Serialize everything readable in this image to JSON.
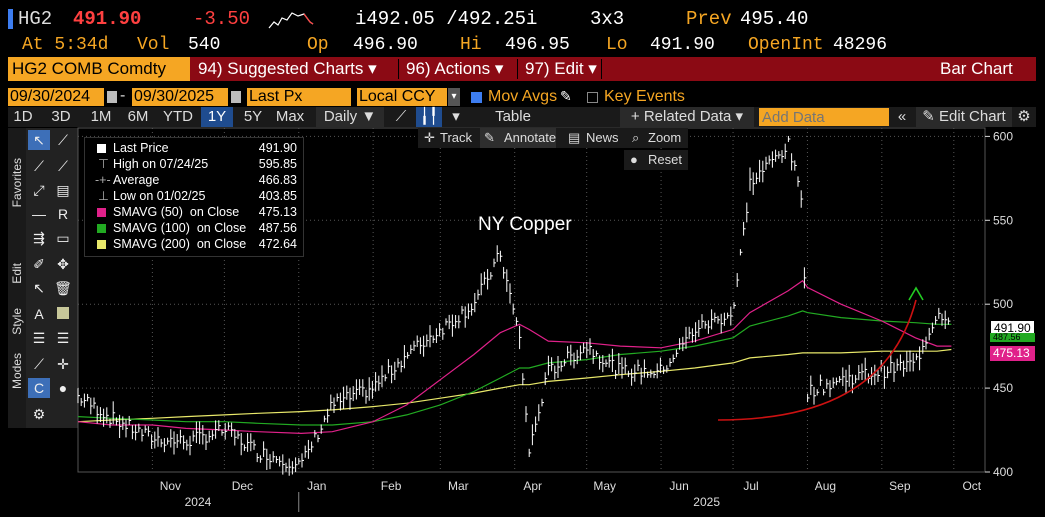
{
  "quote": {
    "ticker": "HG2",
    "last": "491.90",
    "change": "-3.50",
    "bid_ask": "i492.05 /492.25i",
    "size": "3x3",
    "prev_label": "Prev",
    "prev": "495.40",
    "time_label": "At 5:34d",
    "vol_label": "Vol",
    "vol": "540",
    "open_label": "Op",
    "open": "496.90",
    "high_label": "Hi",
    "high": "496.95",
    "low_label": "Lo",
    "low": "491.90",
    "oi_label": "OpenInt",
    "oi": "48296"
  },
  "titlebar": {
    "security": "HG2 COMB Comdty",
    "suggested": "94) Suggested Charts ▾",
    "actions": "96) Actions ▾",
    "edit": "97) Edit ▾",
    "chart_type": "Bar Chart"
  },
  "controls": {
    "start_date": "09/30/2024",
    "end_date": "09/30/2025",
    "field": "Last Px",
    "currency": "Local CCY",
    "mov_avgs": "Mov Avgs",
    "key_events": "Key Events"
  },
  "periods": [
    "1D",
    "3D",
    "1M",
    "6M",
    "YTD",
    "1Y",
    "5Y",
    "Max"
  ],
  "selected_period": "1Y",
  "toolbar": {
    "freq": "Daily ▼",
    "table": "Table",
    "related": "+ Related Data ▾",
    "add_data_placeholder": "Add Data",
    "edit_chart": "Edit Chart"
  },
  "overlay": {
    "track": "Track",
    "annotate": "Annotate",
    "news": "News",
    "zoom": "Zoom",
    "reset": "Reset"
  },
  "side_tabs": {
    "favorites": "Favorites",
    "edit": "Edit",
    "style": "Style",
    "modes": "Modes"
  },
  "legend": {
    "last_price": {
      "label": "Last Price",
      "value": "491.90"
    },
    "high": {
      "label": "High on 07/24/25",
      "value": "595.85"
    },
    "average": {
      "label": "Average",
      "value": "466.83"
    },
    "low": {
      "label": "Low on 01/02/25",
      "value": "403.85"
    },
    "sma50": {
      "label": "SMAVG (50)  on Close",
      "value": "475.13"
    },
    "sma100": {
      "label": "SMAVG (100)  on Close",
      "value": "487.56"
    },
    "sma200": {
      "label": "SMAVG (200)  on Close",
      "value": "472.64"
    }
  },
  "colors": {
    "sma50": "#e0218a",
    "sma100": "#22aa22",
    "sma200": "#e8e86a",
    "price": "#ffffff",
    "arrow": "#cc1111",
    "arrow_head": "#22cc22"
  },
  "chart_data": {
    "type": "line",
    "title": "NY Copper",
    "ylim": [
      400,
      605
    ],
    "yticks": [
      400,
      450,
      500,
      550,
      600
    ],
    "x_tick_labels": [
      "Nov",
      "Dec",
      "Jan",
      "Feb",
      "Mar",
      "Apr",
      "May",
      "Jun",
      "Jul",
      "Aug",
      "Sep",
      "Oct"
    ],
    "year_labels": [
      "2024",
      "2025"
    ],
    "x": [
      "2024-10-01",
      "2024-10-15",
      "2024-11-01",
      "2024-11-15",
      "2024-12-01",
      "2024-12-15",
      "2025-01-02",
      "2025-01-15",
      "2025-02-01",
      "2025-02-15",
      "2025-03-01",
      "2025-03-15",
      "2025-03-26",
      "2025-04-03",
      "2025-04-07",
      "2025-04-15",
      "2025-05-01",
      "2025-05-15",
      "2025-06-01",
      "2025-06-15",
      "2025-07-01",
      "2025-07-08",
      "2025-07-24",
      "2025-07-30",
      "2025-08-01",
      "2025-08-15",
      "2025-09-01",
      "2025-09-15",
      "2025-09-24",
      "2025-09-30"
    ],
    "series": [
      {
        "name": "Last Price",
        "values": [
          445,
          432,
          420,
          418,
          425,
          412,
          404,
          440,
          450,
          470,
          485,
          500,
          530,
          480,
          412,
          460,
          475,
          460,
          460,
          485,
          495,
          572,
          595,
          560,
          448,
          455,
          460,
          465,
          495,
          492
        ]
      },
      {
        "name": "SMAVG (50)  on Close",
        "values": [
          430,
          428,
          428,
          426,
          425,
          424,
          423,
          424,
          430,
          440,
          455,
          470,
          483,
          488,
          485,
          478,
          477,
          475,
          474,
          478,
          485,
          495,
          508,
          514,
          510,
          500,
          490,
          480,
          475,
          475
        ]
      },
      {
        "name": "SMAVG (100)  on Close",
        "values": [
          433,
          432,
          431,
          430,
          430,
          429,
          428,
          428,
          430,
          434,
          440,
          448,
          456,
          462,
          462,
          465,
          467,
          470,
          472,
          475,
          480,
          487,
          493,
          496,
          495,
          492,
          490,
          489,
          488,
          488
        ]
      },
      {
        "name": "SMAVG (200)  on Close",
        "values": [
          430,
          431,
          432,
          433,
          434,
          435,
          436,
          437,
          439,
          441,
          444,
          447,
          450,
          452,
          452,
          454,
          456,
          458,
          460,
          462,
          465,
          468,
          470,
          471,
          471,
          471,
          472,
          472,
          472,
          473
        ]
      }
    ],
    "price_tags": [
      "491.90",
      "487.56",
      "475.13"
    ]
  }
}
